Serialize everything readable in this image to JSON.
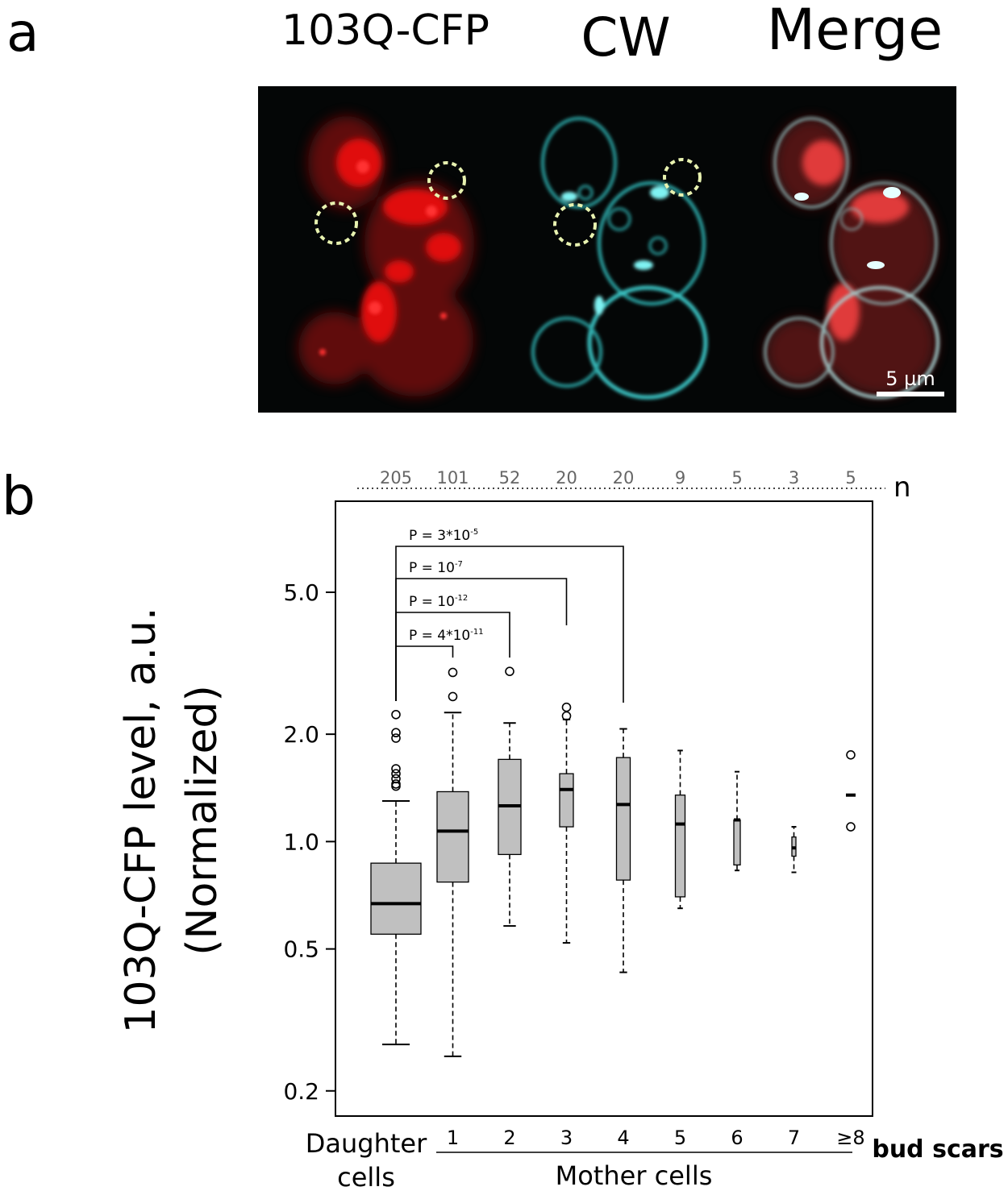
{
  "panel_a": {
    "letter": "a",
    "channels": [
      "103Q-CFP",
      "CW",
      "Merge"
    ],
    "scale_bar": "5 µm",
    "colors": {
      "cfp": "#ff2020",
      "cw": "#3fd6d6",
      "roi": "#e8f2b0",
      "background": "#050707"
    }
  },
  "panel_b": {
    "letter": "b",
    "n_label": "n",
    "counts": [
      "205",
      "101",
      "52",
      "20",
      "20",
      "9",
      "5",
      "3",
      "5"
    ],
    "ylabel_line1": "103Q-CFP level, a.u.",
    "ylabel_line2": "(Normalized)",
    "daughter_line1": "Daughter",
    "daughter_line2": "cells",
    "mother_label": "Mother cells",
    "bud_scars_label": "bud scars",
    "pvalues": [
      {
        "base": "P = 3*10",
        "exp": "-5"
      },
      {
        "base": "P = 10",
        "exp": "-7"
      },
      {
        "base": "P = 10",
        "exp": "-12"
      },
      {
        "base": "P = 4*10",
        "exp": "-11"
      }
    ]
  },
  "chart_data": {
    "type": "box",
    "yscale": "log",
    "ylim": [
      0.17,
      9.0
    ],
    "yticks": [
      0.2,
      0.5,
      1.0,
      2.0,
      5.0
    ],
    "ytick_labels": [
      "0.2",
      "0.5",
      "1.0",
      "2.0",
      "5.0"
    ],
    "categories": [
      "Daughter cells",
      "1",
      "2",
      "3",
      "4",
      "5",
      "6",
      "7",
      "≥8"
    ],
    "category_labels": [
      "",
      "1",
      "2",
      "3",
      "4",
      "5",
      "6",
      "7",
      "≥8"
    ],
    "n": [
      205,
      101,
      52,
      20,
      20,
      9,
      5,
      3,
      5
    ],
    "box_fill": "#c0c0c0",
    "boxes": [
      {
        "whislo": 0.27,
        "q1": 0.55,
        "med": 0.67,
        "q3": 0.87,
        "whishi": 1.3,
        "fliers": [
          1.43,
          1.45,
          1.5,
          1.55,
          1.6,
          1.95,
          2.02,
          2.27
        ]
      },
      {
        "whislo": 0.25,
        "q1": 0.77,
        "med": 1.07,
        "q3": 1.38,
        "whishi": 2.3,
        "fliers": [
          2.55,
          2.98
        ]
      },
      {
        "whislo": 0.58,
        "q1": 0.92,
        "med": 1.26,
        "q3": 1.7,
        "whishi": 2.15,
        "fliers": [
          3.0
        ]
      },
      {
        "whislo": 0.52,
        "q1": 1.1,
        "med": 1.4,
        "q3": 1.55,
        "whishi": 2.2,
        "fliers": [
          2.25,
          2.38
        ]
      },
      {
        "whislo": 0.43,
        "q1": 0.78,
        "med": 1.27,
        "q3": 1.72,
        "whishi": 2.07,
        "fliers": []
      },
      {
        "whislo": 0.65,
        "q1": 0.7,
        "med": 1.12,
        "q3": 1.35,
        "whishi": 1.8,
        "fliers": []
      },
      {
        "whislo": 0.83,
        "q1": 0.86,
        "med": 1.15,
        "q3": 1.15,
        "whishi": 1.57,
        "fliers": []
      },
      {
        "whislo": 0.82,
        "q1": 0.91,
        "med": 0.96,
        "q3": 1.03,
        "whishi": 1.1,
        "fliers": []
      },
      {
        "whislo": 1.35,
        "q1": 1.35,
        "med": 1.35,
        "q3": 1.35,
        "whishi": 1.35,
        "fliers": [
          1.1,
          1.75
        ]
      }
    ],
    "comparisons": [
      {
        "from": 0,
        "to": 4,
        "label": "P = 3*10^-5"
      },
      {
        "from": 0,
        "to": 3,
        "label": "P = 10^-7"
      },
      {
        "from": 0,
        "to": 2,
        "label": "P = 10^-12"
      },
      {
        "from": 0,
        "to": 1,
        "label": "P = 4*10^-11"
      }
    ]
  }
}
